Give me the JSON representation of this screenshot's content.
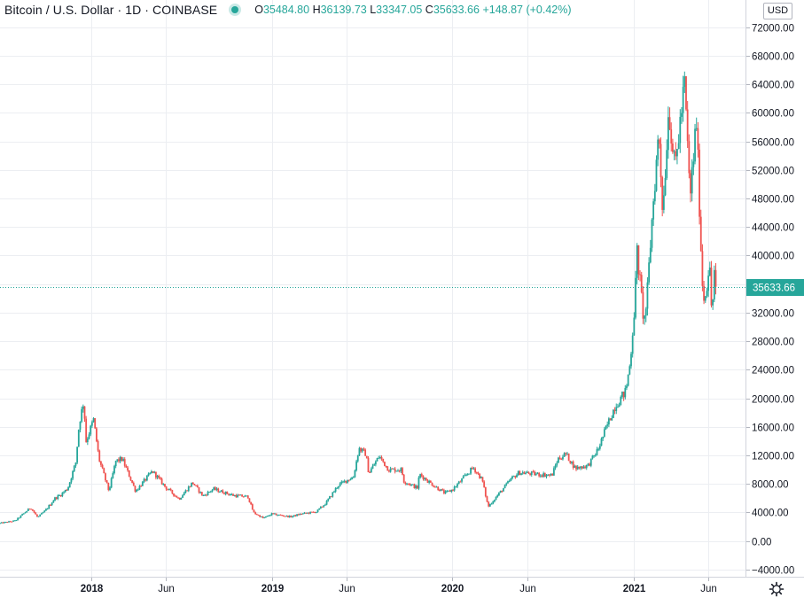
{
  "header": {
    "symbol": "Bitcoin / U.S. Dollar · 1D · COINBASE",
    "o_label": "O",
    "o_value": "35484.80",
    "h_label": "H",
    "h_value": "36139.73",
    "l_label": "L",
    "l_value": "33347.05",
    "c_label": "C",
    "c_value": "35633.66",
    "change": "+148.87 (+0.42%)"
  },
  "currency": "USD",
  "last_price_label": "35633.66",
  "colors": {
    "up": "#26a69a",
    "down": "#ef5350",
    "grid": "#eceef2",
    "axis_text": "#131722"
  },
  "icons": {
    "settings": "gear-icon"
  },
  "chart_data": {
    "type": "line",
    "title": "Bitcoin / U.S. Dollar · 1D · COINBASE",
    "xlabel": "",
    "ylabel": "",
    "x_ticks": [
      "2018",
      "Jun",
      "2019",
      "Jun",
      "2020",
      "Jun",
      "2021",
      "Jun"
    ],
    "y_ticks": [
      -4000,
      0,
      4000,
      8000,
      12000,
      16000,
      20000,
      24000,
      28000,
      32000,
      36000,
      40000,
      44000,
      48000,
      52000,
      56000,
      60000,
      64000,
      68000,
      72000
    ],
    "y_tick_labels": [
      "−4000.00",
      "0.00",
      "4000.00",
      "8000.00",
      "12000.00",
      "16000.00",
      "20000.00",
      "24000.00",
      "28000.00",
      "32000.00",
      "36000.00",
      "40000.00",
      "44000.00",
      "48000.00",
      "52000.00",
      "56000.00",
      "60000.00",
      "64000.00",
      "68000.00",
      "72000.00"
    ],
    "ylim": [
      -5000,
      75800
    ],
    "xlim": [
      "2017-07-01",
      "2021-08-15"
    ],
    "last_price": 35633.66,
    "grid": true,
    "series": [
      {
        "values": [
          [
            "2017-07-01",
            2500
          ],
          [
            "2017-08-01",
            2850
          ],
          [
            "2017-09-01",
            4700
          ],
          [
            "2017-09-15",
            3300
          ],
          [
            "2017-10-01",
            4300
          ],
          [
            "2017-10-20",
            6000
          ],
          [
            "2017-11-01",
            6500
          ],
          [
            "2017-11-15",
            7400
          ],
          [
            "2017-12-01",
            11000
          ],
          [
            "2017-12-08",
            16500
          ],
          [
            "2017-12-17",
            19600
          ],
          [
            "2017-12-22",
            14000
          ],
          [
            "2018-01-06",
            17000
          ],
          [
            "2018-01-17",
            11500
          ],
          [
            "2018-02-06",
            7000
          ],
          [
            "2018-02-20",
            11200
          ],
          [
            "2018-03-05",
            11500
          ],
          [
            "2018-04-01",
            7000
          ],
          [
            "2018-05-05",
            9800
          ],
          [
            "2018-06-01",
            7500
          ],
          [
            "2018-06-28",
            5900
          ],
          [
            "2018-07-25",
            8200
          ],
          [
            "2018-08-15",
            6300
          ],
          [
            "2018-09-05",
            7300
          ],
          [
            "2018-10-15",
            6400
          ],
          [
            "2018-11-14",
            6200
          ],
          [
            "2018-11-25",
            4000
          ],
          [
            "2018-12-15",
            3200
          ],
          [
            "2019-01-01",
            3800
          ],
          [
            "2019-02-08",
            3400
          ],
          [
            "2019-03-01",
            3800
          ],
          [
            "2019-04-01",
            4100
          ],
          [
            "2019-04-20",
            5300
          ],
          [
            "2019-05-15",
            7800
          ],
          [
            "2019-06-01",
            8500
          ],
          [
            "2019-06-15",
            9000
          ],
          [
            "2019-06-26",
            13000
          ],
          [
            "2019-07-10",
            12200
          ],
          [
            "2019-07-16",
            9500
          ],
          [
            "2019-08-06",
            11900
          ],
          [
            "2019-08-25",
            10000
          ],
          [
            "2019-09-20",
            10000
          ],
          [
            "2019-09-25",
            8400
          ],
          [
            "2019-10-23",
            7400
          ],
          [
            "2019-10-26",
            9400
          ],
          [
            "2019-11-20",
            8000
          ],
          [
            "2019-12-17",
            6700
          ],
          [
            "2020-01-01",
            7200
          ],
          [
            "2020-02-12",
            10300
          ],
          [
            "2020-03-01",
            8600
          ],
          [
            "2020-03-13",
            4800
          ],
          [
            "2020-04-01",
            6400
          ],
          [
            "2020-04-30",
            8800
          ],
          [
            "2020-05-15",
            9600
          ],
          [
            "2020-06-15",
            9400
          ],
          [
            "2020-07-20",
            9200
          ],
          [
            "2020-08-01",
            11500
          ],
          [
            "2020-08-17",
            12200
          ],
          [
            "2020-09-05",
            10200
          ],
          [
            "2020-10-01",
            10600
          ],
          [
            "2020-10-21",
            12800
          ],
          [
            "2020-11-05",
            15600
          ],
          [
            "2020-11-25",
            19000
          ],
          [
            "2020-12-01",
            19500
          ],
          [
            "2020-12-16",
            21000
          ],
          [
            "2020-12-25",
            25000
          ],
          [
            "2021-01-03",
            33000
          ],
          [
            "2021-01-08",
            40500
          ],
          [
            "2021-01-22",
            30500
          ],
          [
            "2021-01-28",
            34000
          ],
          [
            "2021-02-08",
            46000
          ],
          [
            "2021-02-21",
            57500
          ],
          [
            "2021-03-01",
            46000
          ],
          [
            "2021-03-13",
            61000
          ],
          [
            "2021-03-25",
            52000
          ],
          [
            "2021-04-14",
            64000
          ],
          [
            "2021-04-25",
            48000
          ],
          [
            "2021-05-08",
            59000
          ],
          [
            "2021-05-13",
            49000
          ],
          [
            "2021-05-19",
            37000
          ],
          [
            "2021-05-23",
            34000
          ],
          [
            "2021-05-28",
            35500
          ],
          [
            "2021-06-03",
            39000
          ],
          [
            "2021-06-08",
            31500
          ],
          [
            "2021-06-15",
            40000
          ],
          [
            "2021-06-18",
            35633.66
          ]
        ]
      }
    ]
  }
}
